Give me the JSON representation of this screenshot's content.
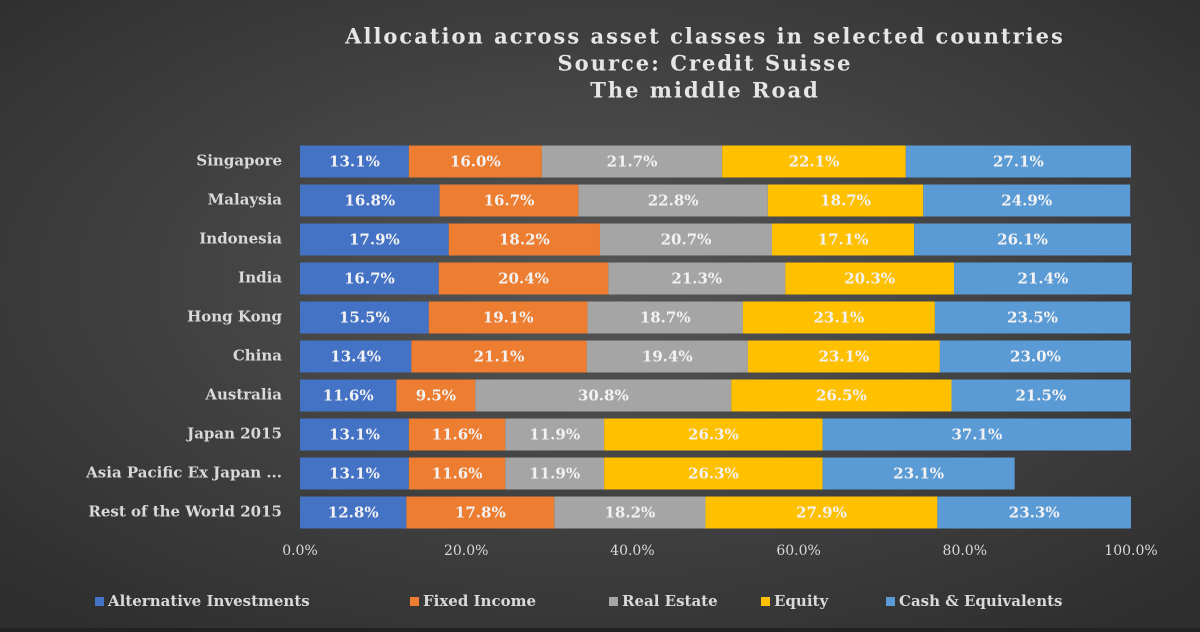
{
  "chart_data": {
    "type": "stacked-bar-horizontal",
    "title": [
      "Allocation across asset classes in selected countries",
      "Source: Credit Suisse",
      "The middle Road"
    ],
    "categories": [
      "Singapore",
      "Malaysia",
      "Indonesia",
      "India",
      "Hong Kong",
      "China",
      "Australia",
      "Japan 2015",
      "Asia Pacific Ex Japan ...",
      "Rest of the World 2015"
    ],
    "series": [
      {
        "name": "Alternative Investments",
        "color": "#4472c4",
        "values": [
          13.1,
          16.8,
          17.9,
          16.7,
          15.5,
          13.4,
          11.6,
          13.1,
          13.1,
          12.8
        ],
        "value_labels": [
          "13.1%",
          "16.8%",
          "17.9%",
          "16.7%",
          "15.5%",
          "13.4%",
          "11.6%",
          "13.1%",
          "13.1%",
          "12.8%"
        ]
      },
      {
        "name": "Fixed Income",
        "color": "#ed7d31",
        "values": [
          16.0,
          16.7,
          18.2,
          20.4,
          19.1,
          21.1,
          9.5,
          11.6,
          11.6,
          17.8
        ],
        "value_labels": [
          "16.0%",
          "16.7%",
          "18.2%",
          "20.4%",
          "19.1%",
          "21.1%",
          "9.5%",
          "11.6%",
          "11.6%",
          "17.8%"
        ]
      },
      {
        "name": "Real Estate",
        "color": "#a5a5a5",
        "values": [
          21.7,
          22.8,
          20.7,
          21.3,
          18.7,
          19.4,
          30.8,
          11.9,
          11.9,
          18.2
        ],
        "value_labels": [
          "21.7%",
          "22.8%",
          "20.7%",
          "21.3%",
          "18.7%",
          "19.4%",
          "30.8%",
          "11.9%",
          "11.9%",
          "18.2%"
        ]
      },
      {
        "name": "Equity",
        "color": "#ffc000",
        "values": [
          22.1,
          18.7,
          17.1,
          20.3,
          23.1,
          23.1,
          26.5,
          26.3,
          26.3,
          27.9
        ],
        "value_labels": [
          "22.1%",
          "18.7%",
          "17.1%",
          "20.3%",
          "23.1%",
          "23.1%",
          "26.5%",
          "26.3%",
          "26.3%",
          "27.9%"
        ]
      },
      {
        "name": "Cash & Equivalents",
        "color": "#5b9bd5",
        "values": [
          27.1,
          24.9,
          26.1,
          21.4,
          23.5,
          23.0,
          21.5,
          37.1,
          23.1,
          23.3
        ],
        "value_labels": [
          "27.1%",
          "24.9%",
          "26.1%",
          "21.4%",
          "23.5%",
          "23.0%",
          "21.5%",
          "37.1%",
          "23.1%",
          "23.3%"
        ]
      }
    ],
    "xlim": [
      0,
      100
    ],
    "xticks": [
      {
        "value": 0,
        "label": "0.0%"
      },
      {
        "value": 20,
        "label": "20.0%"
      },
      {
        "value": 40,
        "label": "40.0%"
      },
      {
        "value": 60,
        "label": "60.0%"
      },
      {
        "value": 80,
        "label": "80.0%"
      },
      {
        "value": 100,
        "label": "100.0%"
      }
    ],
    "grid": false,
    "legend": "bottom"
  }
}
